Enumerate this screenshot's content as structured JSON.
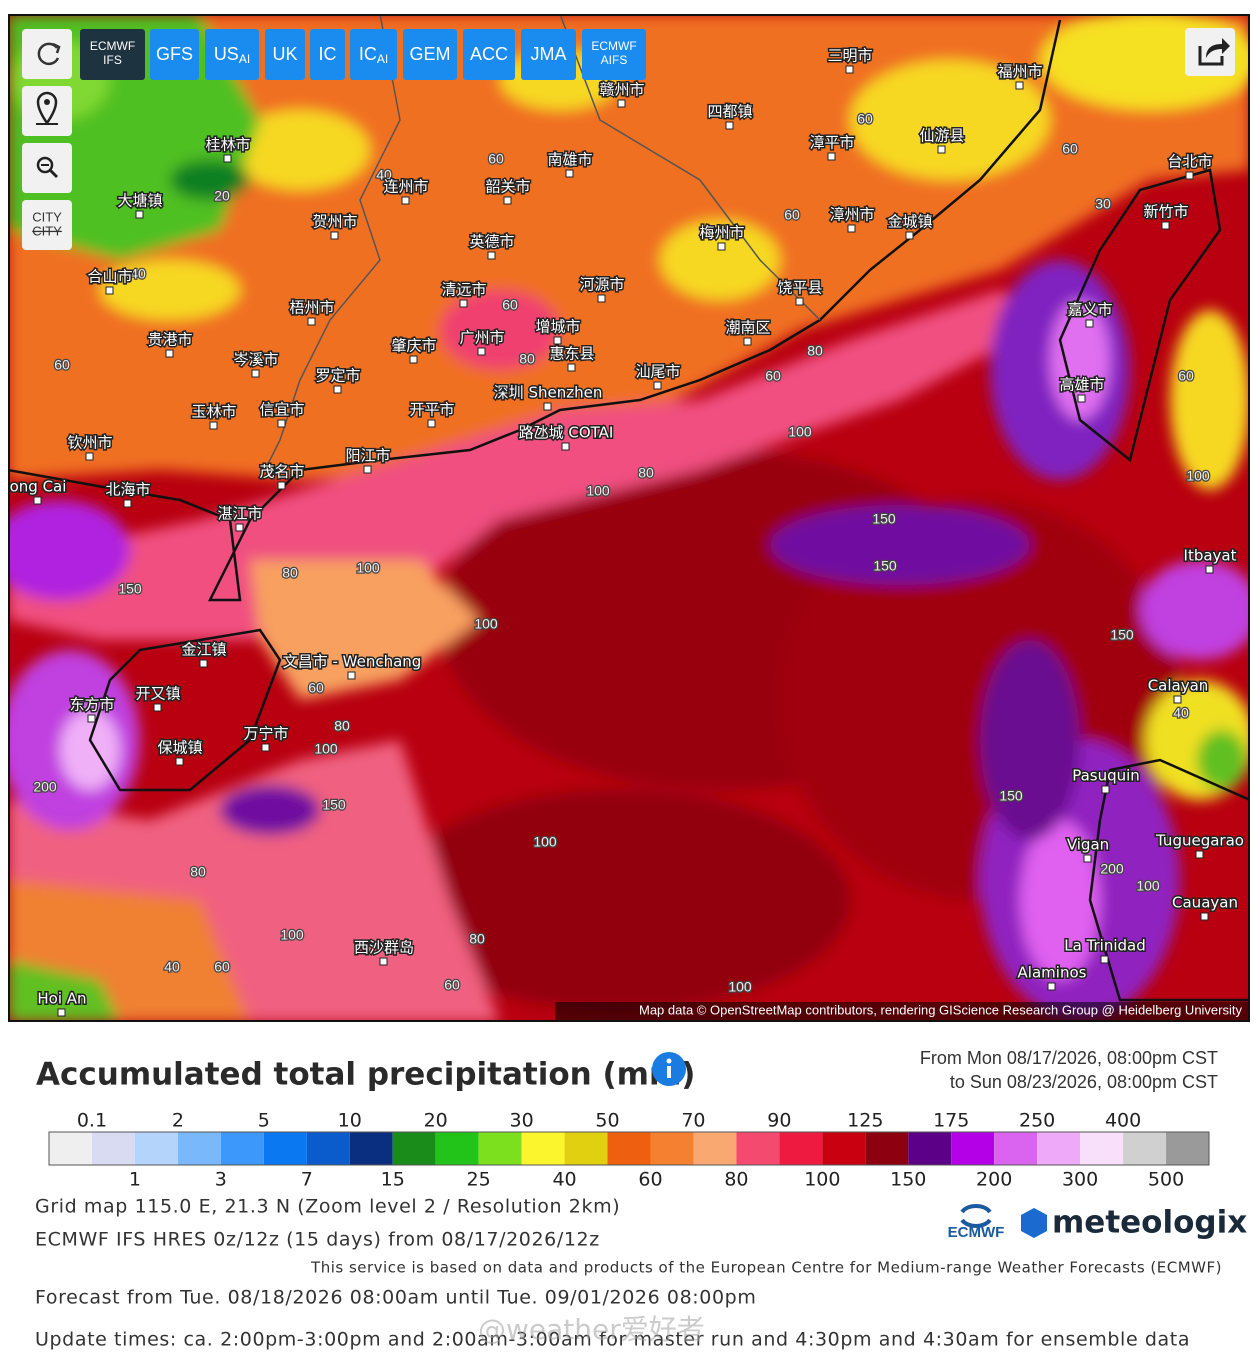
{
  "toolbar": {
    "model_buttons": [
      {
        "lines": [
          "ECMWF",
          "IFS"
        ]
      },
      {
        "text": "GFS"
      },
      {
        "text": "US",
        "sub": "AI"
      },
      {
        "text": "UK"
      },
      {
        "text": "IC"
      },
      {
        "text": "IC",
        "sub": "AI"
      },
      {
        "text": "GEM"
      },
      {
        "text": "ACC"
      },
      {
        "text": "JMA"
      },
      {
        "lines": [
          "ECMWF",
          "AIFS"
        ]
      }
    ],
    "city_toggle": "CITY"
  },
  "map": {
    "places": [
      {
        "name": "深圳 Shenzhen"
      },
      {
        "name": "路氹城 COTAI"
      },
      {
        "name": "广州市"
      },
      {
        "name": "汕尾市"
      },
      {
        "name": "湛江市"
      },
      {
        "name": "北海市"
      },
      {
        "name": "文昌市 - Wenchang"
      },
      {
        "name": "万宁市"
      },
      {
        "name": "东方市"
      },
      {
        "name": "保城镇"
      },
      {
        "name": "金江镇"
      },
      {
        "name": "开又镇"
      },
      {
        "name": "西沙群岛"
      },
      {
        "name": "高雄市"
      },
      {
        "name": "嘉义市"
      },
      {
        "name": "新竹市"
      },
      {
        "name": "台北市"
      },
      {
        "name": "福州市"
      },
      {
        "name": "三明市"
      },
      {
        "name": "漳州市"
      },
      {
        "name": "金城镇"
      },
      {
        "name": "饶平县"
      },
      {
        "name": "潮南区"
      },
      {
        "name": "梅州市"
      },
      {
        "name": "河源市"
      },
      {
        "name": "惠东县"
      },
      {
        "name": "增城市"
      },
      {
        "name": "英德市"
      },
      {
        "name": "清远市"
      },
      {
        "name": "韶关市"
      },
      {
        "name": "南雄市"
      },
      {
        "name": "赣州市"
      },
      {
        "name": "贺州市"
      },
      {
        "name": "梧州市"
      },
      {
        "name": "肇庆市"
      },
      {
        "name": "罗定市"
      },
      {
        "name": "开平市"
      },
      {
        "name": "阳江市"
      },
      {
        "name": "茂名市"
      },
      {
        "name": "信宜市"
      },
      {
        "name": "玉林市"
      },
      {
        "name": "岑溪市"
      },
      {
        "name": "贵港市"
      },
      {
        "name": "钦州市"
      },
      {
        "name": "合山市"
      },
      {
        "name": "大塘镇"
      },
      {
        "name": "桂林市"
      },
      {
        "name": "连州市"
      },
      {
        "name": "四都镇"
      },
      {
        "name": "漳平市"
      },
      {
        "name": "仙游县"
      },
      {
        "name": "Itbayat"
      },
      {
        "name": "Calayan"
      },
      {
        "name": "Pasuquin"
      },
      {
        "name": "Vigan"
      },
      {
        "name": "Tuguegarao"
      },
      {
        "name": "Cauayan"
      },
      {
        "name": "La Trinidad"
      },
      {
        "name": "Alaminos"
      },
      {
        "name": "Hoi An"
      },
      {
        "name": "ong Cai"
      }
    ],
    "contour_labels": [
      80,
      100,
      80,
      100,
      60,
      80,
      150,
      150,
      100,
      100,
      80,
      60,
      80,
      100,
      150,
      100,
      80,
      100,
      80,
      60,
      100,
      60,
      40,
      200,
      150,
      150,
      150,
      200,
      100,
      40,
      100,
      60,
      30,
      60,
      60,
      60,
      40,
      20,
      40,
      60,
      60,
      60
    ],
    "attribution": "Map data © OpenStreetMap contributors, rendering GIScience Research Group @ Heidelberg University"
  },
  "legend": {
    "title": "Accumulated total precipitation (mm)",
    "period_from": "From Mon 08/17/2026, 08:00pm CST",
    "period_to": "to Sun 08/23/2026, 08:00pm CST",
    "thresholds": [
      0.1,
      1,
      2,
      3,
      5,
      7,
      10,
      15,
      20,
      25,
      30,
      40,
      50,
      60,
      70,
      80,
      90,
      100,
      125,
      150,
      175,
      200,
      250,
      300,
      400,
      500
    ],
    "colors": [
      "#efefef",
      "#d9dbf2",
      "#b5d4fb",
      "#79b9fb",
      "#3d98fb",
      "#0a78f0",
      "#0a5ccc",
      "#0a2f80",
      "#1a8c1a",
      "#23c41a",
      "#7de01e",
      "#fbf52e",
      "#e0d010",
      "#ee6010",
      "#f58030",
      "#f8a870",
      "#f54a70",
      "#ee1a40",
      "#c80010",
      "#8c0010",
      "#5c0088",
      "#b400e6",
      "#da64f0",
      "#eeaaf8",
      "#f8e0fa",
      "#d0d0d0",
      "#9a9a9a"
    ]
  },
  "info": {
    "grid": "Grid map 115.0 E, 21.3 N (Zoom level 2 / Resolution 2km)",
    "model": "ECMWF IFS HRES 0z/12z (15 days) from 08/17/2026/12z",
    "disclaimer": "This service is based on data and products of the European Centre for Medium-range Weather Forecasts (ECMWF)",
    "forecast": "Forecast from Tue. 08/18/2026 08:00am until Tue. 09/01/2026 08:00pm",
    "update": "Update times: ca. 2:00pm-3:00pm and 2:00am-3:00am for master run and 4:30pm and 4:30am for ensemble data",
    "logo_ecmwf": "ECMWF",
    "logo_meteologix": "meteologix",
    "watermark": "@weather爱好者"
  }
}
